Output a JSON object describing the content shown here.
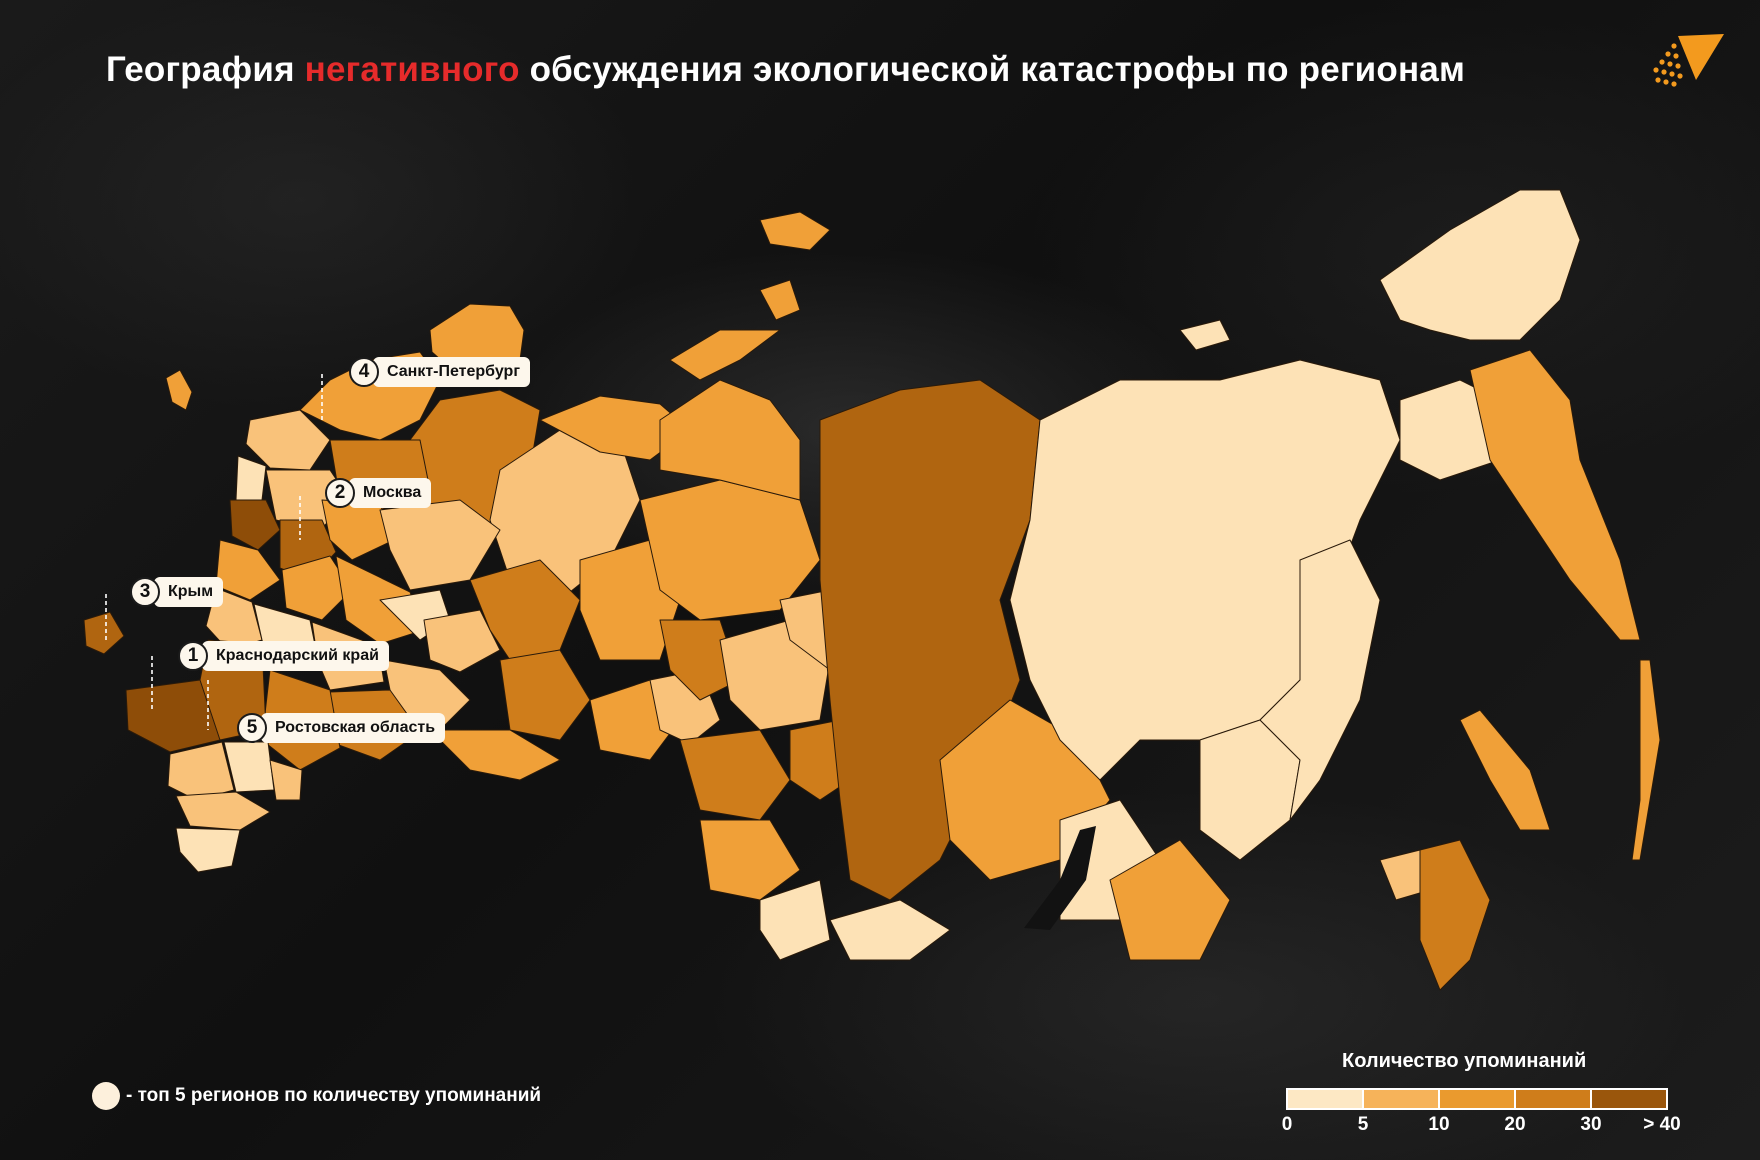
{
  "title": {
    "part1": "География ",
    "accent": "негативного",
    "part2": " обсуждения экологической катастрофы по регионам",
    "accent_color": "#e62b2b"
  },
  "logo": {
    "icon": "orange-triangle-dots-logo",
    "color": "#f39a1e"
  },
  "map": {
    "subject": "Россия — регионы",
    "palette": {
      "0-5": "#fde2b6",
      "5-10": "#f9c27a",
      "10-20": "#f0a038",
      "20-30": "#cf7d1b",
      "30-40": "#b06510",
      ">40": "#8e4d08"
    }
  },
  "top5": [
    {
      "rank": "1",
      "name": "Краснодарский край"
    },
    {
      "rank": "2",
      "name": "Москва"
    },
    {
      "rank": "3",
      "name": "Крым"
    },
    {
      "rank": "4",
      "name": "Санкт-Петербург"
    },
    {
      "rank": "5",
      "name": "Ростовская область"
    }
  ],
  "legend_note": "- топ 5 регионов по количеству упоминаний",
  "scale": {
    "title": "Количество упоминаний",
    "ticks": [
      "0",
      "5",
      "10",
      "20",
      "30",
      "> 40"
    ],
    "colors": [
      "#fde8c4",
      "#f6b35a",
      "#ea9a2e",
      "#cf7d1b",
      "#9a560c"
    ]
  }
}
